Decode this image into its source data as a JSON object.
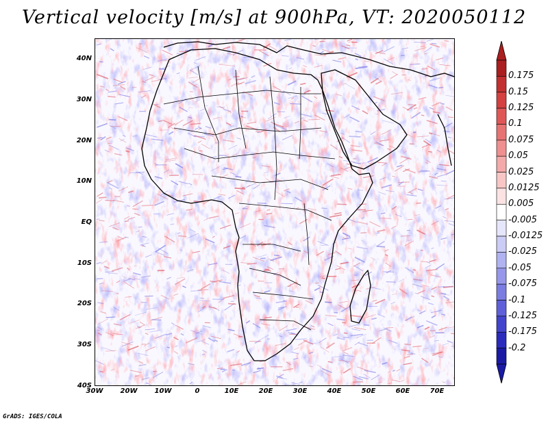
{
  "title": "Vertical velocity [m/s] at 900hPa, VT: 2020050112",
  "footer": "GrADS: IGES/COLA",
  "axes": {
    "lat_labels": [
      "40N",
      "30N",
      "20N",
      "10N",
      "EQ",
      "10S",
      "20S",
      "30S",
      "40S"
    ],
    "lon_labels": [
      "30W",
      "20W",
      "10W",
      "0",
      "10E",
      "20E",
      "30E",
      "40E",
      "50E",
      "60E",
      "70E"
    ]
  },
  "colorbar": {
    "levels": [
      "0.175",
      "0.15",
      "0.125",
      "0.1",
      "0.075",
      "0.05",
      "0.025",
      "0.0125",
      "0.005",
      "-0.005",
      "-0.0125",
      "-0.025",
      "-0.05",
      "-0.075",
      "-0.1",
      "-0.125",
      "-0.175",
      "-0.2"
    ],
    "colors": [
      "#aa1f1f",
      "#c33030",
      "#d54040",
      "#e05757",
      "#e87373",
      "#ef8f8f",
      "#f4aaaa",
      "#f8c6c6",
      "#fce3e3",
      "#ffffff",
      "#e6e6fb",
      "#cccdf6",
      "#b1b2f0",
      "#9697ea",
      "#7b7ce2",
      "#5f60d9",
      "#4344cd",
      "#2a2bbd",
      "#1a1aa5"
    ],
    "arrow_top_color": "#aa1f1f",
    "arrow_bottom_color": "#1a1aa5"
  },
  "colors": {
    "positive": "#e0606a",
    "negative": "#7f7fe6",
    "coast": "#000000",
    "border": "#111111"
  }
}
